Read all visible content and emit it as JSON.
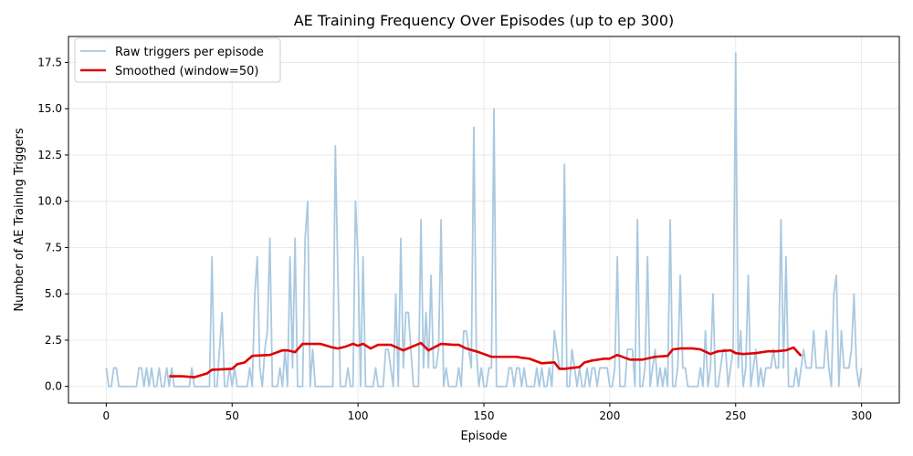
{
  "chart_data": {
    "type": "line",
    "title": "AE Training Frequency Over Episodes (up to ep 300)",
    "xlabel": "Episode",
    "ylabel": "Number of AE Training Triggers",
    "xlim": [
      -15,
      315
    ],
    "ylim": [
      -0.9,
      18.9
    ],
    "xticks": [
      0,
      50,
      100,
      150,
      200,
      250,
      300
    ],
    "xtick_labels": [
      "0",
      "50",
      "100",
      "150",
      "200",
      "250",
      "300"
    ],
    "yticks": [
      0,
      2.5,
      5,
      7.5,
      10,
      12.5,
      15,
      17.5
    ],
    "ytick_labels": [
      "0.0",
      "2.5",
      "5.0",
      "7.5",
      "10.0",
      "12.5",
      "15.0",
      "17.5"
    ],
    "grid": true,
    "legend_position": "top-left",
    "series": [
      {
        "name": "Raw triggers per episode",
        "color": "#a9c9e1",
        "x_start": 0,
        "values": [
          1,
          0,
          0,
          1,
          1,
          0,
          0,
          0,
          0,
          0,
          0,
          0,
          0,
          1,
          1,
          0,
          1,
          0,
          1,
          0,
          0,
          1,
          0,
          0,
          1,
          0,
          1,
          0,
          0,
          0,
          0,
          0,
          0,
          0,
          1,
          0,
          0,
          0,
          0,
          0,
          0,
          0,
          7,
          0,
          0,
          2,
          4,
          0,
          0,
          1,
          0,
          1,
          0,
          0,
          0,
          0,
          0,
          1,
          0,
          5,
          7,
          1,
          0,
          2,
          3,
          8,
          0,
          0,
          0,
          1,
          0,
          2,
          0,
          7,
          1,
          8,
          0,
          0,
          0,
          8,
          10,
          0,
          2,
          0,
          0,
          0,
          0,
          0,
          0,
          0,
          0,
          13,
          6,
          0,
          0,
          0,
          1,
          0,
          0,
          10,
          7,
          0,
          7,
          0,
          0,
          0,
          0,
          1,
          0,
          0,
          0,
          2,
          2,
          1,
          0,
          5,
          0,
          8,
          1,
          4,
          4,
          2,
          0,
          0,
          0,
          9,
          1,
          4,
          1,
          6,
          1,
          1,
          2,
          9,
          0,
          1,
          0,
          0,
          0,
          0,
          1,
          0,
          3,
          3,
          2,
          1,
          14,
          2,
          0,
          1,
          0,
          0,
          1,
          1,
          15,
          0,
          0,
          0,
          0,
          0,
          1,
          1,
          0,
          1,
          1,
          0,
          1,
          0,
          0,
          0,
          0,
          1,
          0,
          1,
          0,
          0,
          1,
          0,
          3,
          2,
          1,
          1,
          12,
          0,
          0,
          2,
          1,
          0,
          1,
          0,
          0,
          1,
          0,
          1,
          1,
          0,
          1,
          1,
          1,
          1,
          0,
          0,
          1,
          7,
          0,
          0,
          0,
          2,
          2,
          2,
          0,
          9,
          0,
          0,
          1,
          7,
          0,
          1,
          2,
          0,
          1,
          0,
          1,
          0,
          9,
          0,
          0,
          1,
          6,
          1,
          1,
          0,
          0,
          0,
          0,
          0,
          1,
          0,
          3,
          0,
          1,
          5,
          0,
          0,
          1,
          2,
          2,
          0,
          1,
          2,
          18,
          1,
          3,
          0,
          1,
          6,
          0,
          1,
          2,
          0,
          1,
          0,
          1,
          1,
          1,
          2,
          1,
          1,
          9,
          1,
          7,
          0,
          0,
          0,
          1,
          0,
          1,
          2,
          1,
          1,
          1,
          3,
          1,
          1,
          1,
          1,
          3,
          1,
          0,
          5,
          6,
          0,
          3,
          1,
          1,
          1,
          2,
          5,
          1,
          0,
          1
        ],
        "points_note": ""
      },
      {
        "name": "Smoothed (window=50)",
        "color": "#e00000",
        "x": [
          25,
          30,
          35,
          40,
          42,
          50,
          52,
          55,
          58,
          65,
          70,
          72,
          75,
          78,
          85,
          90,
          92,
          95,
          98,
          100,
          102,
          105,
          108,
          110,
          113,
          118,
          125,
          128,
          133,
          138,
          140,
          143,
          148,
          150,
          153,
          158,
          163,
          165,
          168,
          173,
          178,
          180,
          182,
          188,
          190,
          193,
          198,
          200,
          203,
          208,
          213,
          218,
          223,
          225,
          228,
          233,
          236,
          240,
          243,
          248,
          250,
          253,
          258,
          263,
          266,
          270,
          273,
          276
        ],
        "values": [
          0.55,
          0.55,
          0.5,
          0.7,
          0.9,
          0.95,
          1.2,
          1.3,
          1.65,
          1.7,
          1.95,
          1.95,
          1.85,
          2.3,
          2.3,
          2.1,
          2.05,
          2.15,
          2.3,
          2.2,
          2.3,
          2.05,
          2.25,
          2.25,
          2.25,
          1.95,
          2.35,
          1.95,
          2.3,
          2.25,
          2.25,
          2.05,
          1.85,
          1.75,
          1.6,
          1.6,
          1.6,
          1.55,
          1.5,
          1.25,
          1.3,
          0.95,
          0.95,
          1.05,
          1.3,
          1.4,
          1.5,
          1.5,
          1.7,
          1.45,
          1.45,
          1.6,
          1.65,
          2.0,
          2.05,
          2.05,
          2.0,
          1.75,
          1.9,
          1.95,
          1.8,
          1.75,
          1.8,
          1.9,
          1.9,
          1.95,
          2.1,
          1.65
        ]
      }
    ]
  }
}
